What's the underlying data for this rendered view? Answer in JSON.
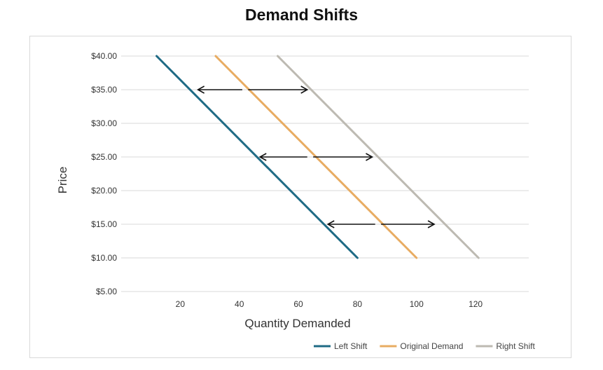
{
  "chart_data": {
    "type": "line",
    "title": "Demand Shifts",
    "xlabel": "Quantity Demanded",
    "ylabel": "Price",
    "x_ticks": [
      "20",
      "40",
      "60",
      "80",
      "100",
      "120"
    ],
    "x_tick_values": [
      20,
      40,
      60,
      80,
      100,
      120
    ],
    "y_ticks": [
      "$5.00",
      "$10.00",
      "$15.00",
      "$20.00",
      "$25.00",
      "$30.00",
      "$35.00",
      "$40.00"
    ],
    "y_tick_values": [
      5,
      10,
      15,
      20,
      25,
      30,
      35,
      40
    ],
    "xlim": [
      0,
      138
    ],
    "ylim": [
      5,
      40
    ],
    "grid": true,
    "legend_position": "bottom-right",
    "series": [
      {
        "name": "Left Shift",
        "color": "#1f6b85",
        "x": [
          12,
          80
        ],
        "y": [
          40,
          10
        ]
      },
      {
        "name": "Original Demand",
        "color": "#e8ac62",
        "x": [
          32,
          100
        ],
        "y": [
          40,
          10
        ]
      },
      {
        "name": "Right Shift",
        "color": "#bdbab2",
        "x": [
          53,
          121
        ],
        "y": [
          40,
          10
        ]
      }
    ],
    "annotations": [
      {
        "type": "arrow",
        "y": 35,
        "x_from": 41,
        "x_to": 26
      },
      {
        "type": "arrow",
        "y": 35,
        "x_from": 43,
        "x_to": 63
      },
      {
        "type": "arrow",
        "y": 25,
        "x_from": 63,
        "x_to": 47
      },
      {
        "type": "arrow",
        "y": 25,
        "x_from": 65,
        "x_to": 85
      },
      {
        "type": "arrow",
        "y": 15,
        "x_from": 86,
        "x_to": 70
      },
      {
        "type": "arrow",
        "y": 15,
        "x_from": 88,
        "x_to": 106
      }
    ]
  }
}
